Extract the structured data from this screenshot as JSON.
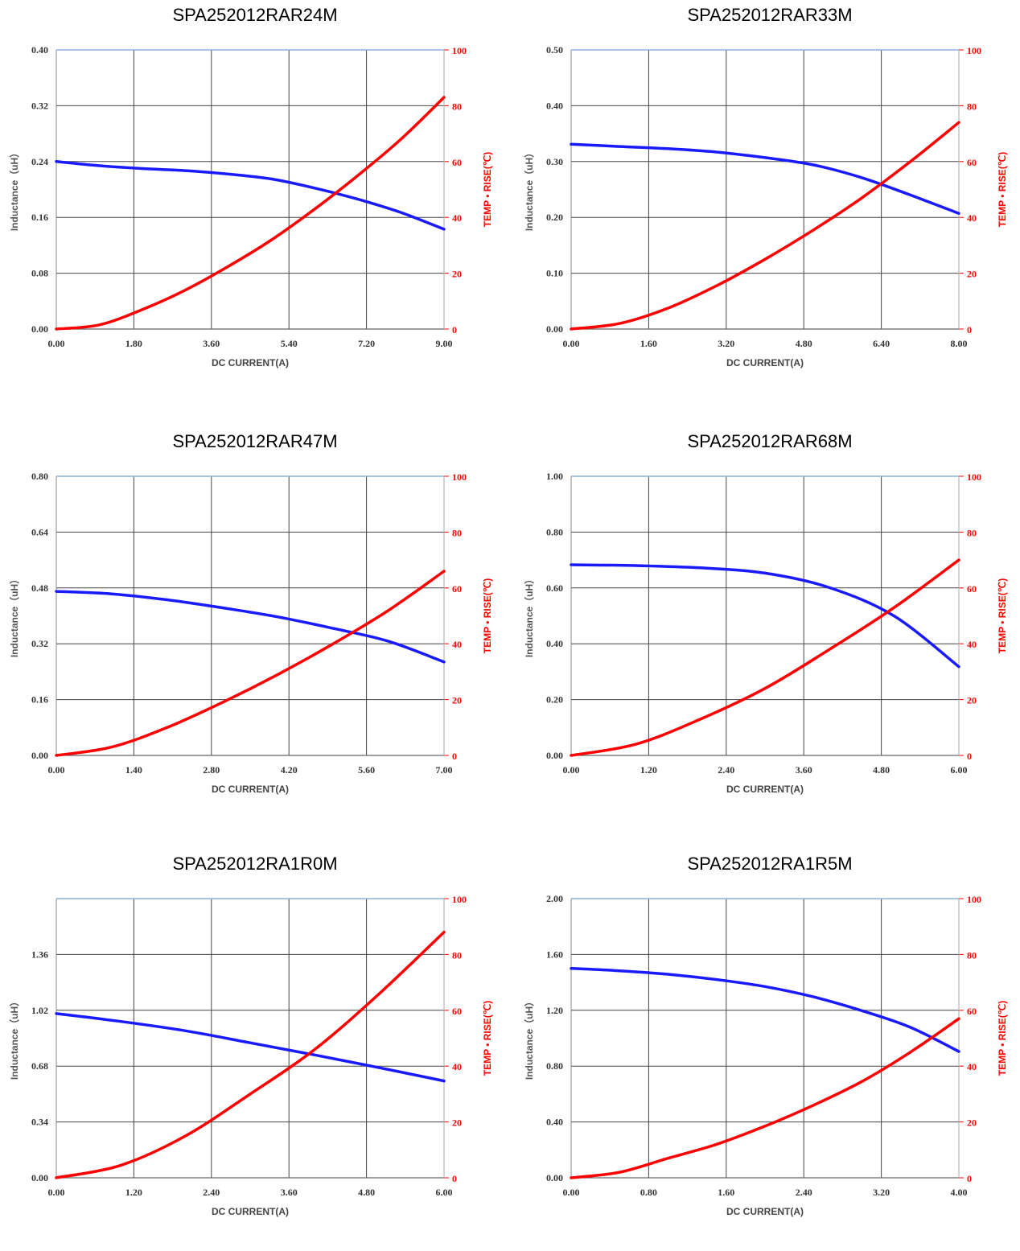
{
  "colors": {
    "inductance": "#1a1aff",
    "temp": "#ff0000",
    "grid": "#444444",
    "top_border": "#8ab0d8",
    "left_label": "#555555"
  },
  "chart_data": [
    {
      "type": "line",
      "title": "SPA252012RAR24M",
      "xlabel": "DC CURRENT(A)",
      "ylabel": "Inductance（uH）",
      "y2label": "TEMP • RISE(℃)",
      "xlim": [
        0,
        9
      ],
      "ylim": [
        0,
        0.4
      ],
      "y2lim": [
        0,
        100
      ],
      "x_ticks": [
        "0.00",
        "1.80",
        "3.60",
        "5.40",
        "7.20",
        "9.00"
      ],
      "y_ticks": [
        "0.00",
        "0.08",
        "0.16",
        "0.24",
        "0.32",
        "0.40"
      ],
      "y2_ticks": [
        "0",
        "20",
        "40",
        "60",
        "80",
        "100"
      ],
      "series": [
        {
          "name": "Inductance",
          "axis": "left",
          "x": [
            0,
            1,
            2,
            3,
            4,
            5,
            6,
            7,
            8,
            9
          ],
          "values": [
            0.24,
            0.234,
            0.23,
            0.227,
            0.222,
            0.215,
            0.202,
            0.186,
            0.167,
            0.143
          ]
        },
        {
          "name": "Temp Rise",
          "axis": "right",
          "x": [
            0,
            1,
            2,
            3,
            4,
            5,
            6,
            7,
            8,
            9
          ],
          "values": [
            0,
            1.5,
            7,
            14,
            22.5,
            32,
            43,
            55,
            68,
            83
          ]
        }
      ]
    },
    {
      "type": "line",
      "title": "SPA252012RAR33M",
      "xlabel": "DC CURRENT(A)",
      "ylabel": "Inductance（uH）",
      "y2label": "TEMP • RISE(℃)",
      "xlim": [
        0,
        8
      ],
      "ylim": [
        0,
        0.5
      ],
      "y2lim": [
        0,
        100
      ],
      "x_ticks": [
        "0.00",
        "1.60",
        "3.20",
        "4.80",
        "6.40",
        "8.00"
      ],
      "y_ticks": [
        "0.00",
        "0.10",
        "0.20",
        "0.30",
        "0.40",
        "0.50"
      ],
      "y2_ticks": [
        "0",
        "20",
        "40",
        "60",
        "80",
        "100"
      ],
      "series": [
        {
          "name": "Inductance",
          "axis": "left",
          "x": [
            0,
            1,
            2,
            3,
            4,
            5,
            6,
            7,
            8
          ],
          "values": [
            0.331,
            0.327,
            0.323,
            0.317,
            0.307,
            0.294,
            0.271,
            0.24,
            0.207
          ]
        },
        {
          "name": "Temp Rise",
          "axis": "right",
          "x": [
            0,
            1,
            2,
            3,
            4,
            5,
            6,
            7,
            8
          ],
          "values": [
            0,
            2,
            7.5,
            15.5,
            25,
            35.5,
            47,
            60,
            74
          ]
        }
      ]
    },
    {
      "type": "line",
      "title": "SPA252012RAR47M",
      "xlabel": "DC CURRENT(A)",
      "ylabel": "Inductance（uH）",
      "y2label": "TEMP • RISE(℃)",
      "xlim": [
        0,
        7
      ],
      "ylim": [
        0,
        0.8
      ],
      "y2lim": [
        0,
        100
      ],
      "x_ticks": [
        "0.00",
        "1.40",
        "2.80",
        "4.20",
        "5.60",
        "7.00"
      ],
      "y_ticks": [
        "0.00",
        "0.16",
        "0.32",
        "0.48",
        "0.64",
        "0.80"
      ],
      "y2_ticks": [
        "0",
        "20",
        "40",
        "60",
        "80",
        "100"
      ],
      "series": [
        {
          "name": "Inductance",
          "axis": "left",
          "x": [
            0,
            1,
            2,
            3,
            4,
            5,
            6,
            7
          ],
          "values": [
            0.47,
            0.463,
            0.446,
            0.423,
            0.397,
            0.364,
            0.327,
            0.268
          ]
        },
        {
          "name": "Temp Rise",
          "axis": "right",
          "x": [
            0,
            1,
            2,
            3,
            4,
            5,
            6,
            7
          ],
          "values": [
            0,
            3,
            10,
            19,
            29,
            40,
            52,
            66
          ]
        }
      ]
    },
    {
      "type": "line",
      "title": "SPA252012RAR68M",
      "xlabel": "DC CURRENT(A)",
      "ylabel": "Inductance（uH）",
      "y2label": "TEMP • RISE(℃)",
      "xlim": [
        0,
        6
      ],
      "ylim": [
        0,
        1.0
      ],
      "y2lim": [
        0,
        100
      ],
      "x_ticks": [
        "0.00",
        "1.20",
        "2.40",
        "3.60",
        "4.80",
        "6.00"
      ],
      "y_ticks": [
        "0.00",
        "0.20",
        "0.40",
        "0.60",
        "0.80",
        "1.00"
      ],
      "y2_ticks": [
        "0",
        "20",
        "40",
        "60",
        "80",
        "100"
      ],
      "series": [
        {
          "name": "Inductance",
          "axis": "left",
          "x": [
            0,
            1,
            2,
            3,
            4,
            5,
            6
          ],
          "values": [
            0.683,
            0.68,
            0.672,
            0.653,
            0.601,
            0.499,
            0.318
          ]
        },
        {
          "name": "Temp Rise",
          "axis": "right",
          "x": [
            0,
            1,
            2,
            3,
            4,
            5,
            6
          ],
          "values": [
            0,
            4,
            13,
            24,
            38,
            53,
            70
          ]
        }
      ]
    },
    {
      "type": "line",
      "title": "SPA252012RA1R0M",
      "xlabel": "DC CURRENT(A)",
      "ylabel": "Inductance（uH）",
      "y2label": "TEMP • RISE(℃)",
      "xlim": [
        0,
        6
      ],
      "ylim": [
        0,
        1.7
      ],
      "y2lim": [
        0,
        100
      ],
      "x_ticks": [
        "0.00",
        "1.20",
        "2.40",
        "3.60",
        "4.80",
        "6.00"
      ],
      "y_ticks": [
        "0.00",
        "0.34",
        "0.68",
        "1.02",
        "1.36"
      ],
      "y2_ticks": [
        "0",
        "20",
        "40",
        "60",
        "80",
        "100"
      ],
      "series": [
        {
          "name": "Inductance",
          "axis": "left",
          "x": [
            0,
            1,
            2,
            3,
            4,
            5,
            6
          ],
          "values": [
            1.0,
            0.952,
            0.895,
            0.822,
            0.748,
            0.67,
            0.59
          ]
        },
        {
          "name": "Temp Rise",
          "axis": "right",
          "x": [
            0,
            1,
            2,
            3,
            4,
            5,
            6
          ],
          "values": [
            0,
            4.5,
            15,
            30,
            46,
            66,
            88
          ]
        }
      ]
    },
    {
      "type": "line",
      "title": "SPA252012RA1R5M",
      "xlabel": "DC CURRENT(A)",
      "ylabel": "Inductance（uH）",
      "y2label": "TEMP • RISE(℃)",
      "xlim": [
        0,
        4
      ],
      "ylim": [
        0,
        2.0
      ],
      "y2lim": [
        0,
        100
      ],
      "x_ticks": [
        "0.00",
        "0.80",
        "1.60",
        "2.40",
        "3.20",
        "4.00"
      ],
      "y_ticks": [
        "0.00",
        "0.40",
        "0.80",
        "1.20",
        "1.60",
        "2.00"
      ],
      "y2_ticks": [
        "0",
        "20",
        "40",
        "60",
        "80",
        "100"
      ],
      "series": [
        {
          "name": "Inductance",
          "axis": "left",
          "x": [
            0,
            0.5,
            1,
            1.5,
            2,
            2.5,
            3,
            3.5,
            4
          ],
          "values": [
            1.5,
            1.483,
            1.458,
            1.42,
            1.37,
            1.296,
            1.197,
            1.078,
            0.905
          ]
        },
        {
          "name": "Temp Rise",
          "axis": "right",
          "x": [
            0,
            0.5,
            1,
            1.5,
            2,
            2.5,
            3,
            3.5,
            4
          ],
          "values": [
            0,
            2,
            7,
            12,
            18.5,
            26,
            34.5,
            45,
            57
          ]
        }
      ]
    }
  ]
}
